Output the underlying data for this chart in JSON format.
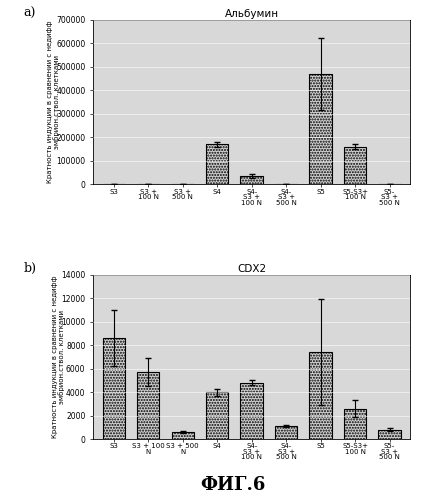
{
  "panel_a": {
    "title": "Альбумин",
    "ylabel": "Кратность индукции в сравнении с недифф\nэмбрион.ствол. клетками",
    "categories": [
      "S3",
      "S3 +\n100 N",
      "S3 +\n500 N",
      "S4",
      "S4-\nS3 +\n100 N",
      "S4-\nS3 +\n500 N",
      "S5",
      "S5-S3+\n100 N",
      "S5-\nS3 +\n500 N"
    ],
    "values": [
      0,
      0,
      0,
      170000,
      35000,
      0,
      470000,
      160000,
      2000
    ],
    "errors_up": [
      0,
      0,
      0,
      10000,
      8000,
      0,
      155000,
      10000,
      1000
    ],
    "errors_dn": [
      0,
      0,
      0,
      10000,
      8000,
      0,
      155000,
      10000,
      1000
    ],
    "ylim": [
      0,
      700000
    ],
    "yticks": [
      0,
      100000,
      200000,
      300000,
      400000,
      500000,
      600000,
      700000
    ],
    "yticklabels": [
      "0",
      "100000",
      "200000",
      "300000",
      "400000",
      "500000",
      "600000",
      "700000"
    ]
  },
  "panel_b": {
    "title": "CDX2",
    "ylabel": "Кратность индукции в сравнении с недифф\nэмбрион.ствол. клетками",
    "categories": [
      "S3",
      "S3 + 100\nN",
      "S3 + 500\nN",
      "S4",
      "S4-\nS3 +\n100 N",
      "S4-\nS3 +\n500 N",
      "S5",
      "S5-S3+\n100 N",
      "S5-\nS3 +\n500 N"
    ],
    "values": [
      8600,
      5700,
      600,
      4000,
      4800,
      1100,
      7400,
      2600,
      800
    ],
    "errors_up": [
      2400,
      1200,
      100,
      300,
      200,
      100,
      4500,
      700,
      150
    ],
    "errors_dn": [
      2400,
      1200,
      100,
      300,
      200,
      100,
      4500,
      700,
      150
    ],
    "ylim": [
      0,
      14000
    ],
    "yticks": [
      0,
      2000,
      4000,
      6000,
      8000,
      10000,
      12000,
      14000
    ],
    "yticklabels": [
      "0",
      "2000",
      "4000",
      "6000",
      "8000",
      "10000",
      "12000",
      "14000"
    ]
  },
  "fig_label": "ФИГ.6",
  "bar_facecolor": "#d0d0d0",
  "bar_edgecolor": "#000000",
  "bg_color": "#d8d8d8",
  "label_a": "a)",
  "label_b": "b)"
}
